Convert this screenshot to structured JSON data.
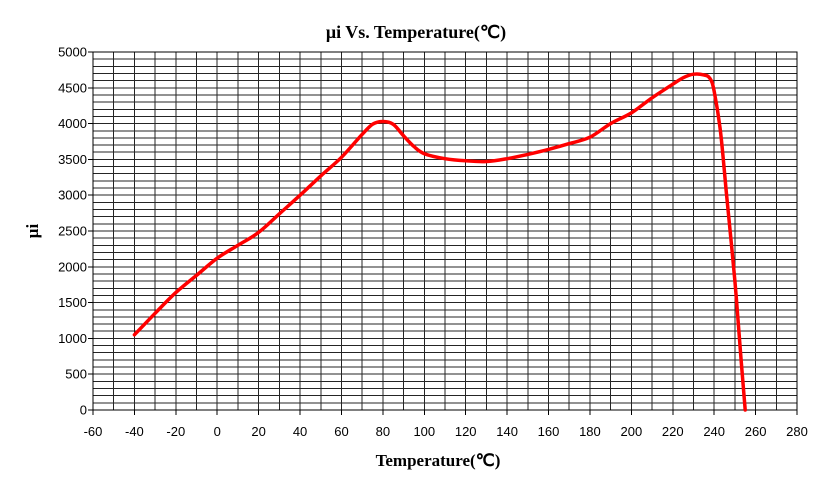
{
  "chart_data": {
    "type": "line",
    "title": "μi Vs. Temperature(℃)",
    "xlabel": "Temperature(℃)",
    "ylabel": "μi",
    "xlim": [
      -60,
      280
    ],
    "ylim": [
      0,
      5000
    ],
    "x_ticks": [
      -60,
      -40,
      -20,
      0,
      20,
      40,
      60,
      80,
      100,
      120,
      140,
      160,
      180,
      200,
      220,
      240,
      260,
      280
    ],
    "y_ticks": [
      0,
      500,
      1000,
      1500,
      2000,
      2500,
      3000,
      3500,
      4000,
      4500,
      5000
    ],
    "x_minor_step": 10,
    "y_minor_step": 100,
    "grid": true,
    "legend": "none",
    "line_color": "#ff0000",
    "series": [
      {
        "x": [
          -40,
          -30,
          -20,
          -10,
          0,
          10,
          20,
          30,
          40,
          50,
          60,
          70,
          75,
          80,
          85,
          90,
          95,
          100,
          110,
          120,
          130,
          140,
          150,
          160,
          170,
          180,
          190,
          200,
          210,
          220,
          225,
          230,
          235,
          238,
          240,
          243,
          246,
          250,
          253,
          255
        ],
        "y": [
          1050,
          1350,
          1640,
          1880,
          2120,
          2300,
          2480,
          2740,
          3000,
          3270,
          3530,
          3850,
          3990,
          4030,
          3990,
          3830,
          3680,
          3580,
          3510,
          3480,
          3470,
          3510,
          3570,
          3640,
          3720,
          3810,
          4000,
          4150,
          4360,
          4550,
          4640,
          4690,
          4680,
          4630,
          4450,
          3900,
          3000,
          1800,
          700,
          0
        ]
      }
    ]
  }
}
